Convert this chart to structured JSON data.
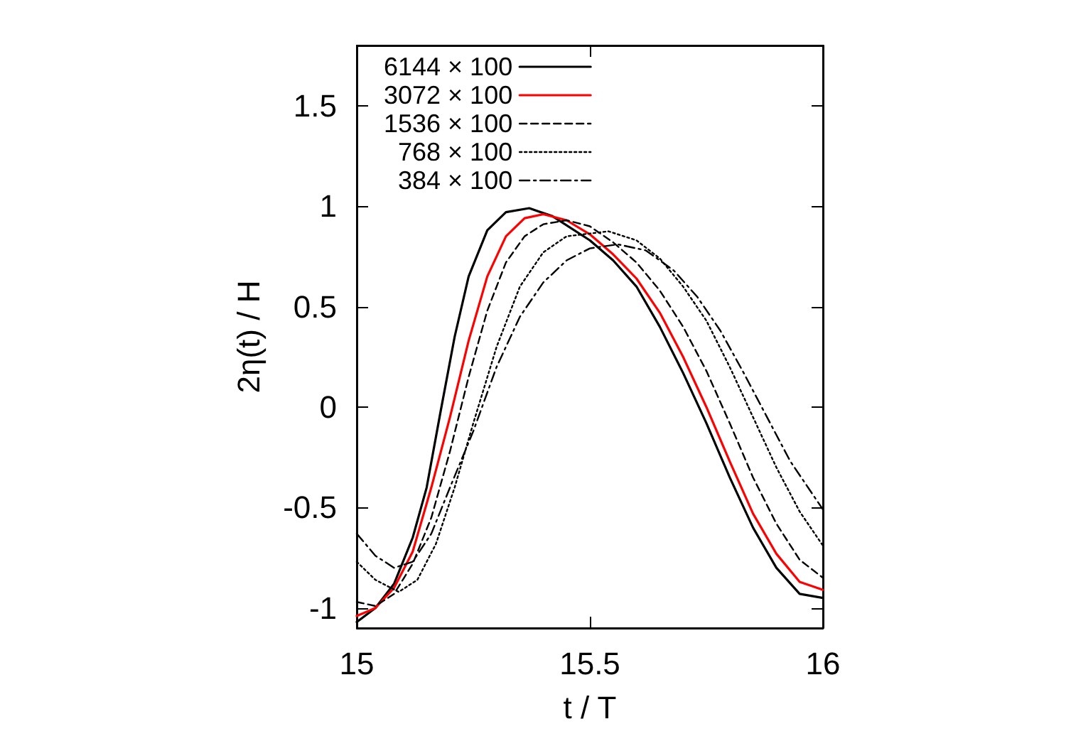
{
  "chart_data": {
    "type": "line",
    "xlabel": "t / T",
    "ylabel": "2η(t) / H",
    "xlim": [
      15,
      16
    ],
    "xticks": [
      15,
      15.5,
      16
    ],
    "ylim": [
      -1.1,
      1.8
    ],
    "yticks": [
      -1,
      -0.5,
      0,
      0.5,
      1,
      1.5
    ],
    "grid": false,
    "legend": "top left",
    "marker": "none",
    "series": [
      {
        "name": "6144 × 100",
        "color": "#000000",
        "line_style": "solid",
        "x": [
          15.0,
          15.04,
          15.08,
          15.12,
          15.15,
          15.18,
          15.21,
          15.24,
          15.28,
          15.32,
          15.37,
          15.42,
          15.5,
          15.55,
          15.6,
          15.65,
          15.7,
          15.75,
          15.8,
          15.85,
          15.9,
          15.95,
          16.0
        ],
        "values": [
          -1.07,
          -1.0,
          -0.88,
          -0.65,
          -0.4,
          -0.02,
          0.35,
          0.65,
          0.88,
          0.97,
          0.99,
          0.95,
          0.83,
          0.73,
          0.6,
          0.4,
          0.17,
          -0.08,
          -0.35,
          -0.6,
          -0.8,
          -0.93,
          -0.95
        ]
      },
      {
        "name": "3072 × 100",
        "color": "#ff0000",
        "line_style": "solid",
        "x": [
          15.0,
          15.04,
          15.08,
          15.12,
          15.16,
          15.2,
          15.24,
          15.28,
          15.32,
          15.36,
          15.4,
          15.45,
          15.5,
          15.55,
          15.6,
          15.65,
          15.7,
          15.75,
          15.8,
          15.85,
          15.9,
          15.95,
          16.0
        ],
        "values": [
          -1.04,
          -1.0,
          -0.9,
          -0.72,
          -0.4,
          -0.05,
          0.33,
          0.65,
          0.85,
          0.94,
          0.96,
          0.93,
          0.86,
          0.76,
          0.64,
          0.47,
          0.25,
          0.0,
          -0.27,
          -0.53,
          -0.73,
          -0.87,
          -0.91
        ]
      },
      {
        "name": "1536 × 100",
        "color": "#000000",
        "line_style": "dashed",
        "x": [
          15.0,
          15.04,
          15.08,
          15.12,
          15.16,
          15.2,
          15.24,
          15.28,
          15.32,
          15.36,
          15.4,
          15.45,
          15.5,
          15.55,
          15.6,
          15.65,
          15.7,
          15.75,
          15.8,
          15.85,
          15.9,
          15.95,
          16.0
        ],
        "values": [
          -0.97,
          -0.99,
          -0.93,
          -0.78,
          -0.55,
          -0.22,
          0.15,
          0.48,
          0.72,
          0.85,
          0.91,
          0.93,
          0.9,
          0.82,
          0.72,
          0.58,
          0.4,
          0.18,
          -0.08,
          -0.35,
          -0.58,
          -0.76,
          -0.85
        ]
      },
      {
        "name": "768 × 100",
        "color": "#000000",
        "line_style": "dotted",
        "x": [
          15.0,
          15.04,
          15.09,
          15.13,
          15.17,
          15.21,
          15.25,
          15.3,
          15.35,
          15.4,
          15.45,
          15.54,
          15.6,
          15.65,
          15.7,
          15.75,
          15.8,
          15.85,
          15.9,
          15.95,
          16.0
        ],
        "values": [
          -0.77,
          -0.86,
          -0.92,
          -0.86,
          -0.68,
          -0.4,
          -0.08,
          0.3,
          0.6,
          0.77,
          0.85,
          0.875,
          0.83,
          0.74,
          0.6,
          0.43,
          0.2,
          -0.05,
          -0.3,
          -0.52,
          -0.69
        ]
      },
      {
        "name": "384 × 100",
        "color": "#000000",
        "line_style": "dashdot",
        "x": [
          15.0,
          15.04,
          15.08,
          15.12,
          15.16,
          15.2,
          15.25,
          15.3,
          15.35,
          15.4,
          15.45,
          15.5,
          15.56,
          15.62,
          15.68,
          15.73,
          15.78,
          15.83,
          15.88,
          15.93,
          16.0
        ],
        "values": [
          -0.63,
          -0.74,
          -0.8,
          -0.77,
          -0.63,
          -0.4,
          -0.12,
          0.2,
          0.45,
          0.62,
          0.73,
          0.79,
          0.81,
          0.78,
          0.68,
          0.55,
          0.38,
          0.17,
          -0.05,
          -0.27,
          -0.51
        ]
      }
    ]
  }
}
